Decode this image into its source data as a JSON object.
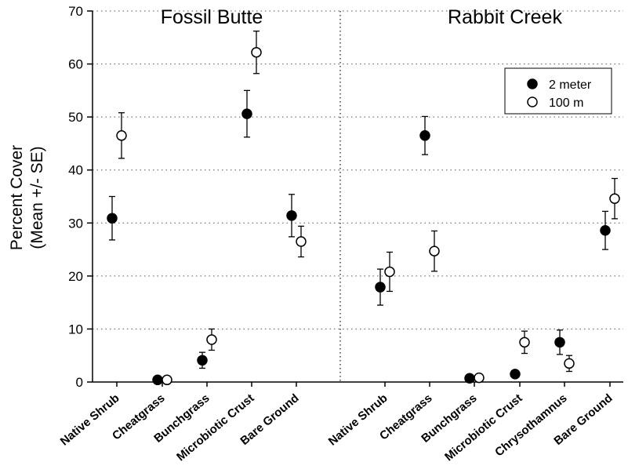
{
  "chart_data": {
    "type": "scatter",
    "ylabel_line1": "Percent Cover",
    "ylabel_line2": "(Mean +/- SE)",
    "ylim": [
      0,
      70
    ],
    "yticks": [
      0,
      10,
      20,
      30,
      40,
      50,
      60,
      70
    ],
    "grid": "horizontal dotted",
    "legend_position": "top-right",
    "series_meta": [
      {
        "name": "2 meter",
        "marker": "filled-circle",
        "color": "#000000"
      },
      {
        "name": "100 m",
        "marker": "open-circle",
        "color": "#ffffff"
      }
    ],
    "panels": [
      {
        "title": "Fossil Butte",
        "categories": [
          "Native Shrub",
          "Cheatgrass",
          "Bunchgrass",
          "Microbiotic Crust",
          "Bare Ground"
        ],
        "series": [
          {
            "name": "2 meter",
            "values": [
              30.9,
              0.4,
              4.1,
              50.6,
              31.4
            ],
            "se": [
              4.1,
              0.3,
              1.5,
              4.4,
              4.0
            ]
          },
          {
            "name": "100 m",
            "values": [
              46.5,
              0.4,
              8.0,
              62.2,
              26.5
            ],
            "se": [
              4.3,
              0.3,
              2.0,
              4.0,
              2.9
            ]
          }
        ]
      },
      {
        "title": "Rabbit Creek",
        "categories": [
          "Native Shrub",
          "Cheatgrass",
          "Bunchgrass",
          "Microbiotic Crust",
          "Chrysothamnus",
          "Bare Ground"
        ],
        "series": [
          {
            "name": "2 meter",
            "values": [
              17.9,
              46.5,
              0.7,
              1.5,
              7.5,
              28.6
            ],
            "se": [
              3.4,
              3.6,
              0.3,
              0.3,
              2.3,
              3.6
            ]
          },
          {
            "name": "100 m",
            "values": [
              20.8,
              24.7,
              0.8,
              7.5,
              3.5,
              34.6
            ],
            "se": [
              3.7,
              3.8,
              0.3,
              2.1,
              1.5,
              3.8
            ]
          }
        ]
      }
    ]
  }
}
